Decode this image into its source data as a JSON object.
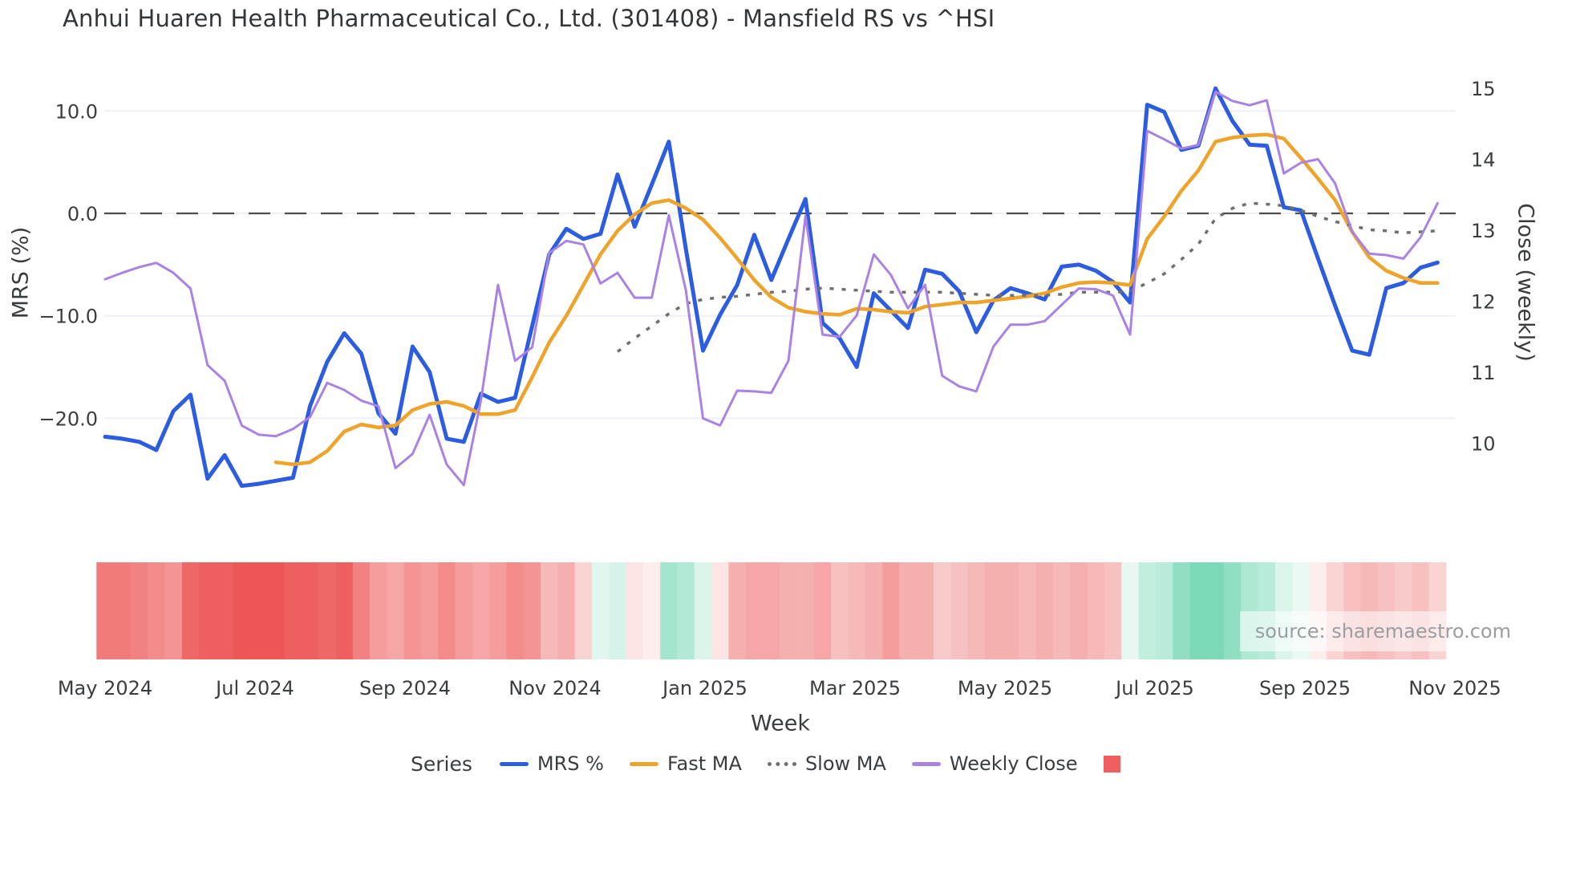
{
  "title": "Anhui Huaren Health Pharmaceutical Co., Ltd. (301408) - Mansfield RS vs ^HSI",
  "source": "source: sharemaestro.com",
  "axes": {
    "left_label": "MRS (%)",
    "right_label": "Close (weekly)",
    "x_label": "Week"
  },
  "legend": {
    "title": "Series",
    "items": [
      {
        "label": "MRS %",
        "color": "#2c5de0",
        "style": "line"
      },
      {
        "label": "Fast MA",
        "color": "#eea32b",
        "style": "line"
      },
      {
        "label": "Slow MA",
        "color": "#6f6f6f",
        "style": "dotted"
      },
      {
        "label": "Weekly Close",
        "color": "#a982e2",
        "style": "line"
      },
      {
        "label": "",
        "color": "#f05f5f",
        "style": "square"
      }
    ]
  },
  "chart_data": {
    "type": "line",
    "x_unit": "week",
    "n_points": 79,
    "x_tick_labels": [
      "May 2024",
      "Jul 2024",
      "Sep 2024",
      "Nov 2024",
      "Jan 2025",
      "Mar 2025",
      "May 2025",
      "Jul 2025",
      "Sep 2025",
      "Nov 2025"
    ],
    "yleft_ticks": [
      {
        "value": 10,
        "label": "10.0"
      },
      {
        "value": 0,
        "label": "0.0"
      },
      {
        "value": -10,
        "label": "−10.0"
      },
      {
        "value": -20,
        "label": "−20.0"
      }
    ],
    "yright_ticks": [
      {
        "value": 15,
        "label": "15"
      },
      {
        "value": 14,
        "label": "14"
      },
      {
        "value": 13,
        "label": "13"
      },
      {
        "value": 12,
        "label": "12"
      },
      {
        "value": 11,
        "label": "11"
      },
      {
        "value": 10,
        "label": "10"
      }
    ],
    "yleft_lim": [
      -33,
      14.5
    ],
    "yright_lim": [
      8.5,
      15.3
    ],
    "grid": true,
    "grid_color": "#edf0f7",
    "zero_line": {
      "value": 0,
      "color": "#4d4d4d"
    },
    "legend_position": "bottom",
    "series": [
      {
        "name": "MRS %",
        "axis": "left",
        "color": "#2c5de0",
        "width": 5,
        "dash": "",
        "values": [
          -21.8,
          -22.0,
          -22.3,
          -23.1,
          -19.3,
          -17.7,
          -25.9,
          -23.6,
          -26.6,
          -26.4,
          -26.1,
          -25.8,
          -18.8,
          -14.5,
          -11.7,
          -13.7,
          -19.5,
          -21.5,
          -13.0,
          -15.5,
          -22.0,
          -22.3,
          -17.6,
          -18.4,
          -18.0,
          -11.0,
          -4.0,
          -1.5,
          -2.5,
          -2.0,
          3.8,
          -1.3,
          2.8,
          7.0,
          -3.5,
          -13.4,
          -9.9,
          -7.0,
          -2.1,
          -6.5,
          -2.5,
          1.4,
          -10.7,
          -12.2,
          -15.0,
          -7.8,
          -9.5,
          -11.2,
          -5.5,
          -5.9,
          -7.6,
          -11.6,
          -8.5,
          -7.3,
          -7.8,
          -8.4,
          -5.2,
          -5.0,
          -5.6,
          -6.7,
          -8.7,
          10.6,
          9.9,
          6.2,
          6.6,
          12.2,
          9.0,
          6.7,
          6.6,
          0.6,
          0.3,
          -4.4,
          -9.0,
          -13.4,
          -13.8,
          -7.3,
          -6.8,
          -5.3,
          -4.8
        ]
      },
      {
        "name": "Fast MA",
        "axis": "left",
        "color": "#eea32b",
        "width": 4.5,
        "dash": "",
        "values": [
          null,
          null,
          null,
          null,
          null,
          null,
          null,
          null,
          null,
          null,
          -24.3,
          -24.5,
          -24.3,
          -23.2,
          -21.3,
          -20.6,
          -20.9,
          -20.7,
          -19.2,
          -18.6,
          -18.4,
          -18.8,
          -19.6,
          -19.6,
          -19.2,
          -16.0,
          -12.6,
          -10.0,
          -7.0,
          -4.0,
          -1.7,
          -0.1,
          1.0,
          1.3,
          0.5,
          -0.6,
          -2.4,
          -4.4,
          -6.5,
          -8.2,
          -9.2,
          -9.6,
          -9.8,
          -9.9,
          -9.3,
          -9.4,
          -9.6,
          -9.7,
          -9.1,
          -8.9,
          -8.7,
          -8.7,
          -8.5,
          -8.3,
          -8.1,
          -7.8,
          -7.2,
          -6.8,
          -6.7,
          -6.8,
          -7.0,
          -2.5,
          -0.3,
          2.2,
          4.2,
          7.0,
          7.4,
          7.6,
          7.7,
          7.3,
          5.4,
          3.4,
          1.3,
          -1.8,
          -4.3,
          -5.6,
          -6.3,
          -6.8,
          -6.8
        ]
      },
      {
        "name": "Slow MA",
        "axis": "left",
        "color": "#6f6f6f",
        "width": 3.5,
        "dash": "5 10",
        "values": [
          null,
          null,
          null,
          null,
          null,
          null,
          null,
          null,
          null,
          null,
          null,
          null,
          null,
          null,
          null,
          null,
          null,
          null,
          null,
          null,
          null,
          null,
          null,
          null,
          null,
          null,
          null,
          null,
          null,
          null,
          -13.5,
          -12.2,
          -11.0,
          -9.8,
          -8.8,
          -8.4,
          -8.2,
          -8.1,
          -7.9,
          -7.7,
          -7.6,
          -7.4,
          -7.3,
          -7.4,
          -7.5,
          -7.6,
          -7.7,
          -7.7,
          -7.7,
          -7.7,
          -7.8,
          -7.9,
          -8.0,
          -8.0,
          -8.0,
          -8.0,
          -7.9,
          -7.7,
          -7.7,
          -7.7,
          -7.6,
          -6.8,
          -5.9,
          -4.5,
          -3.0,
          -0.5,
          0.5,
          1.0,
          0.9,
          0.75,
          0.3,
          -0.3,
          -0.8,
          -1.2,
          -1.6,
          -1.7,
          -1.9,
          -1.8,
          -1.7
        ]
      },
      {
        "name": "Weekly Close",
        "axis": "right",
        "color": "#a982e2",
        "width": 3,
        "dash": "",
        "values": [
          12.31,
          12.4,
          12.48,
          12.54,
          12.4,
          12.18,
          11.1,
          10.88,
          10.25,
          10.12,
          10.1,
          10.2,
          10.37,
          10.85,
          10.75,
          10.6,
          10.52,
          9.65,
          9.85,
          10.4,
          9.7,
          9.41,
          10.6,
          12.23,
          11.16,
          11.35,
          12.68,
          12.85,
          12.8,
          12.25,
          12.4,
          12.05,
          12.05,
          13.21,
          12.15,
          10.35,
          10.25,
          10.74,
          10.73,
          10.71,
          11.16,
          13.2,
          11.53,
          11.5,
          11.8,
          12.66,
          12.37,
          11.9,
          12.23,
          10.95,
          10.8,
          10.73,
          11.36,
          11.67,
          11.67,
          11.72,
          11.95,
          12.18,
          12.17,
          12.08,
          11.53,
          14.4,
          14.28,
          14.15,
          14.2,
          14.95,
          14.82,
          14.76,
          14.83,
          13.8,
          13.95,
          14.0,
          13.66,
          12.98,
          12.67,
          12.65,
          12.6,
          12.9,
          13.38
        ]
      }
    ],
    "heatmap": {
      "negative_color": "#ec4d4d",
      "positive_color": "#35c592",
      "values": [
        -0.75,
        -0.75,
        -0.7,
        -0.65,
        -0.6,
        -0.85,
        -0.9,
        -0.9,
        -0.95,
        -0.95,
        -0.95,
        -0.9,
        -0.9,
        -0.85,
        -0.9,
        -0.7,
        -0.55,
        -0.5,
        -0.6,
        -0.55,
        -0.65,
        -0.55,
        -0.5,
        -0.55,
        -0.65,
        -0.6,
        -0.4,
        -0.45,
        -0.25,
        0.15,
        0.2,
        -0.15,
        -0.1,
        0.45,
        0.38,
        0.18,
        -0.15,
        -0.45,
        -0.5,
        -0.5,
        -0.45,
        -0.45,
        -0.5,
        -0.35,
        -0.4,
        -0.45,
        -0.55,
        -0.45,
        -0.45,
        -0.3,
        -0.35,
        -0.4,
        -0.45,
        -0.45,
        -0.4,
        -0.45,
        -0.4,
        -0.45,
        -0.4,
        -0.35,
        0.12,
        0.3,
        0.35,
        0.55,
        0.65,
        0.65,
        0.55,
        0.4,
        0.35,
        0.18,
        0.1,
        -0.1,
        -0.25,
        -0.35,
        -0.4,
        -0.35,
        -0.3,
        -0.35,
        -0.25
      ]
    }
  }
}
